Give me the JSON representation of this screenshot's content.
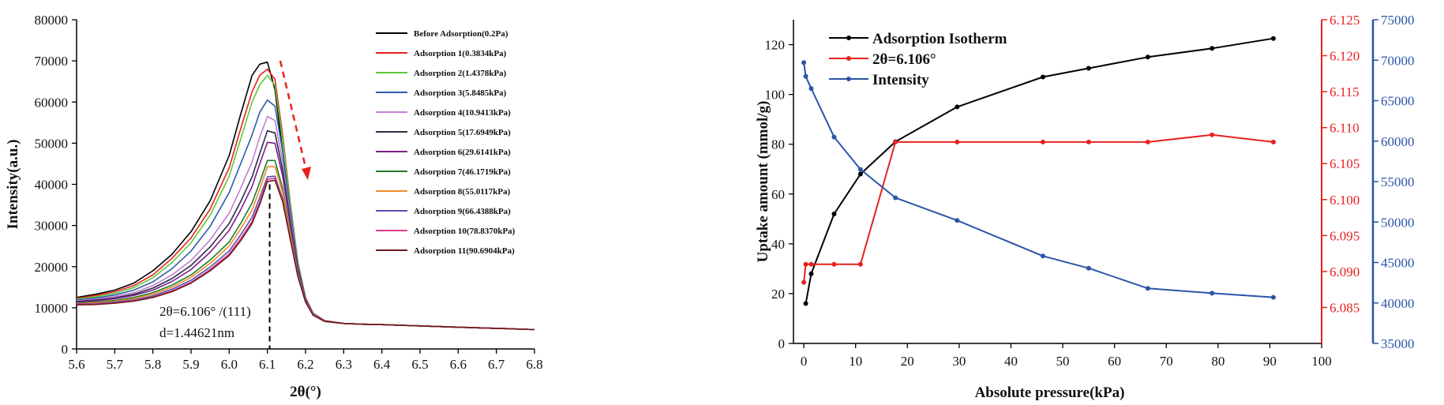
{
  "chart_data": [
    {
      "type": "line",
      "xlabel": "2θ(°)",
      "ylabel": "Intensity(a.u.)",
      "xlim": [
        5.6,
        6.8
      ],
      "ylim": [
        0,
        80000
      ],
      "x_ticks": [
        "5.6",
        "5.7",
        "5.8",
        "5.9",
        "6.0",
        "6.1",
        "6.2",
        "6.3",
        "6.4",
        "6.5",
        "6.6",
        "6.7",
        "6.8"
      ],
      "y_ticks": [
        "0",
        "10000",
        "20000",
        "30000",
        "40000",
        "50000",
        "60000",
        "70000",
        "80000"
      ],
      "legend_position": "top-right",
      "x": [
        5.6,
        5.65,
        5.7,
        5.75,
        5.8,
        5.85,
        5.9,
        5.95,
        6.0,
        6.03,
        6.06,
        6.08,
        6.1,
        6.12,
        6.14,
        6.16,
        6.18,
        6.2,
        6.22,
        6.25,
        6.3,
        6.35,
        6.4,
        6.5,
        6.6,
        6.7,
        6.8
      ],
      "series": [
        {
          "name": "Before Adsorption(0.2Pa)",
          "color": "#000000",
          "values": [
            12500,
            13300,
            14300,
            16000,
            19000,
            23000,
            28500,
            36000,
            47000,
            57000,
            66500,
            69200,
            69700,
            63000,
            48000,
            33000,
            20000,
            12000,
            8500,
            6800,
            6200,
            6000,
            5900,
            5600,
            5300,
            5000,
            4700
          ]
        },
        {
          "name": "Adsorption 1(0.3834kPa)",
          "color": "#e8211f",
          "values": [
            12300,
            13000,
            13900,
            15400,
            18000,
            22000,
            27000,
            34000,
            44000,
            53500,
            62500,
            66500,
            68000,
            65500,
            52000,
            35500,
            21000,
            12500,
            8700,
            6900,
            6200,
            6000,
            5900,
            5600,
            5300,
            5000,
            4700
          ]
        },
        {
          "name": "Adsorption 2(1.4378kPa)",
          "color": "#5ac93a",
          "values": [
            12100,
            12700,
            13500,
            14900,
            17300,
            21000,
            25800,
            32500,
            42000,
            51000,
            60000,
            64200,
            66500,
            64000,
            51000,
            35000,
            21000,
            12400,
            8600,
            6800,
            6200,
            6000,
            5900,
            5600,
            5300,
            5000,
            4700
          ]
        },
        {
          "name": "Adsorption 3(5.8485kPa)",
          "color": "#2c5ea8",
          "values": [
            11900,
            12400,
            13100,
            14300,
            16300,
            19500,
            23800,
            29800,
            38000,
            45000,
            52000,
            57500,
            60500,
            59000,
            48000,
            33500,
            20500,
            12300,
            8600,
            6800,
            6200,
            6000,
            5900,
            5600,
            5300,
            5000,
            4700
          ]
        },
        {
          "name": "Adsorption 4(10.9413kPa)",
          "color": "#c27fd1",
          "values": [
            11700,
            12100,
            12700,
            13700,
            15400,
            18000,
            21500,
            26500,
            33000,
            39000,
            45500,
            51500,
            56500,
            55500,
            45500,
            32000,
            19800,
            12100,
            8500,
            6700,
            6200,
            6000,
            5900,
            5600,
            5300,
            5000,
            4700
          ]
        },
        {
          "name": "Adsorption 5(17.6949kPa)",
          "color": "#2b2b45",
          "values": [
            11500,
            11900,
            12400,
            13300,
            14800,
            17100,
            20300,
            24800,
            30500,
            35800,
            41800,
            47500,
            53000,
            52500,
            43500,
            31000,
            19500,
            12000,
            8400,
            6700,
            6200,
            6000,
            5900,
            5600,
            5300,
            5000,
            4700
          ]
        },
        {
          "name": "Adsorption 6(29.6141kPa)",
          "color": "#7d1e8a",
          "values": [
            11300,
            11700,
            12200,
            13000,
            14300,
            16400,
            19300,
            23500,
            28800,
            33800,
            39500,
            45000,
            50200,
            50000,
            42000,
            30200,
            19200,
            11900,
            8400,
            6700,
            6200,
            6000,
            5900,
            5600,
            5300,
            5000,
            4700
          ]
        },
        {
          "name": "Adsorption 7(46.1719kPa)",
          "color": "#1e7a2a",
          "values": [
            11100,
            11400,
            11800,
            12500,
            13700,
            15500,
            18000,
            21600,
            26000,
            30500,
            35500,
            40500,
            45800,
            45800,
            39000,
            28500,
            18500,
            11700,
            8300,
            6700,
            6200,
            6000,
            5900,
            5600,
            5300,
            5000,
            4700
          ]
        },
        {
          "name": "Adsorption 8(55.0117kPa)",
          "color": "#ef8a2a",
          "values": [
            11000,
            11200,
            11600,
            12200,
            13300,
            15000,
            17400,
            20800,
            25000,
            29200,
            33800,
            38800,
            44300,
            44300,
            38000,
            28000,
            18200,
            11600,
            8300,
            6700,
            6200,
            6000,
            5900,
            5600,
            5300,
            5000,
            4700
          ]
        },
        {
          "name": "Adsorption 9(66.4388kPa)",
          "color": "#5750b0",
          "values": [
            10900,
            11000,
            11400,
            11900,
            12900,
            14500,
            16700,
            19900,
            23800,
            27700,
            32000,
            36800,
            41800,
            42000,
            36500,
            27000,
            17800,
            11500,
            8200,
            6700,
            6200,
            6000,
            5900,
            5600,
            5300,
            5000,
            4700
          ]
        },
        {
          "name": "Adsorption 10(78.8370kPa)",
          "color": "#e23c8c",
          "values": [
            10800,
            10900,
            11200,
            11700,
            12600,
            14100,
            16200,
            19300,
            23100,
            26800,
            31000,
            35700,
            41200,
            41500,
            36200,
            26800,
            17700,
            11500,
            8200,
            6700,
            6200,
            6000,
            5900,
            5600,
            5300,
            5000,
            4700
          ]
        },
        {
          "name": "Adsorption 11(90.6904kPa)",
          "color": "#6e1b1b",
          "values": [
            10700,
            10800,
            11100,
            11600,
            12500,
            13900,
            16000,
            19000,
            22700,
            26300,
            30500,
            35100,
            40700,
            41000,
            35800,
            26600,
            17600,
            11400,
            8200,
            6700,
            6200,
            6000,
            5900,
            5600,
            5300,
            5000,
            4700
          ]
        }
      ],
      "annotations": [
        "2θ=6.106° /(111)",
        "d=1.44621nm"
      ],
      "marker_line_x": 6.106,
      "arrow_color": "#e8211f"
    },
    {
      "type": "line",
      "xlabel": "Absolute pressure(kPa)",
      "ylabel": "Uptake amount (mmol/g)",
      "xlim": [
        -2,
        100
      ],
      "x_ticks": [
        "0",
        "10",
        "20",
        "30",
        "40",
        "50",
        "60",
        "70",
        "80",
        "90",
        "100"
      ],
      "y_left": {
        "range": [
          0,
          130
        ],
        "ticks": [
          "0",
          "20",
          "40",
          "60",
          "80",
          "100",
          "120"
        ],
        "color": "#000000"
      },
      "y_right1": {
        "range": [
          6.08,
          6.125
        ],
        "ticks": [
          "6.085",
          "6.090",
          "6.095",
          "6.100",
          "6.105",
          "6.110",
          "6.115",
          "6.120",
          "6.125"
        ],
        "color": "#e8211f"
      },
      "y_right2": {
        "range": [
          35000,
          75000
        ],
        "ticks": [
          "35000",
          "40000",
          "45000",
          "50000",
          "55000",
          "60000",
          "65000",
          "70000",
          "75000"
        ],
        "color": "#2a55a8"
      },
      "legend_position": "top-left",
      "series": [
        {
          "name": "Adsorption Isotherm",
          "axis": "left",
          "color": "#000000",
          "x": [
            0.3834,
            1.4378,
            5.8485,
            10.9413,
            17.6949,
            29.6141,
            46.1719,
            55.0117,
            66.4388,
            78.837,
            90.6904
          ],
          "values": [
            16,
            28,
            52,
            68,
            81,
            95,
            107,
            110.5,
            115,
            118.5,
            122.5
          ]
        },
        {
          "name": "2θ=6.106°",
          "axis": "right1",
          "color": "#e8211f",
          "x": [
            0.0002,
            0.3834,
            1.4378,
            5.8485,
            10.9413,
            17.6949,
            29.6141,
            46.1719,
            55.0117,
            66.4388,
            78.837,
            90.6904
          ],
          "values": [
            6.0885,
            6.091,
            6.091,
            6.091,
            6.091,
            6.108,
            6.108,
            6.108,
            6.108,
            6.108,
            6.109,
            6.108
          ]
        },
        {
          "name": "Intensity",
          "axis": "right2",
          "color": "#2a55a8",
          "x": [
            0.0002,
            0.3834,
            1.4378,
            5.8485,
            10.9413,
            17.6949,
            29.6141,
            46.1719,
            55.0117,
            66.4388,
            78.837,
            90.6904
          ],
          "values": [
            69700,
            68000,
            66500,
            60500,
            56500,
            53000,
            50200,
            45800,
            44300,
            41800,
            41200,
            40700
          ]
        }
      ]
    }
  ]
}
